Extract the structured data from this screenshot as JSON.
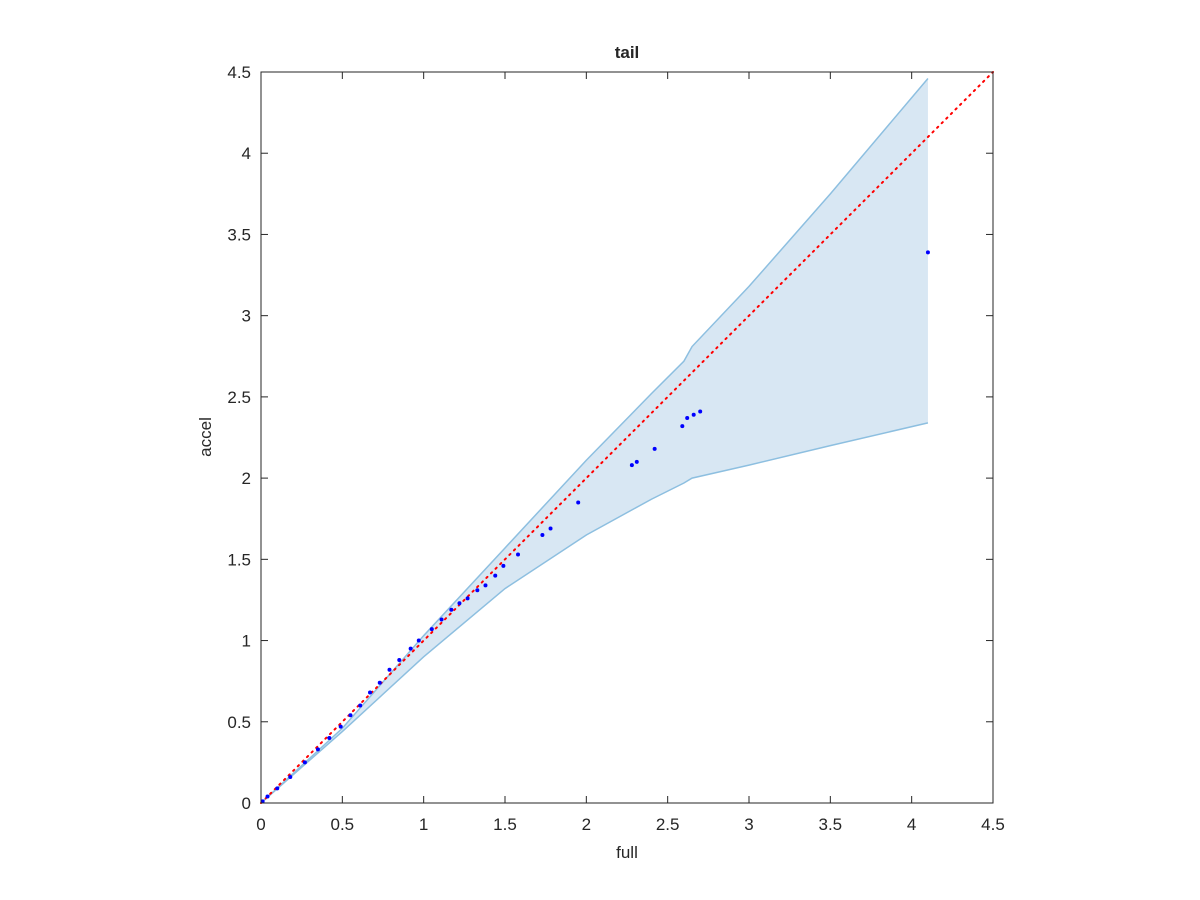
{
  "chart_data": {
    "type": "scatter",
    "title": "tail",
    "x_label": "full",
    "y_label": "accel",
    "xlim": [
      0,
      4.5
    ],
    "ylim": [
      0,
      4.5
    ],
    "xticks": [
      0,
      0.5,
      1,
      1.5,
      2,
      2.5,
      3,
      3.5,
      4,
      4.5
    ],
    "yticks": [
      0,
      0.5,
      1,
      1.5,
      2,
      2.5,
      3,
      3.5,
      4,
      4.5
    ],
    "band": {
      "color": "#d8e7f3",
      "edge_color": "#8dbfe0",
      "x": [
        0,
        0.5,
        1,
        1.5,
        2,
        2.4,
        2.6,
        2.65,
        3,
        3.5,
        4.1
      ],
      "upper": [
        0,
        0.46,
        1.03,
        1.57,
        2.11,
        2.52,
        2.72,
        2.81,
        3.18,
        3.75,
        4.46
      ],
      "lower": [
        0,
        0.44,
        0.9,
        1.32,
        1.65,
        1.87,
        1.97,
        2.0,
        2.08,
        2.2,
        2.34
      ]
    },
    "reference": {
      "color": "#ff0000",
      "x": [
        0,
        4.5
      ],
      "y": [
        0,
        4.5
      ]
    },
    "points": {
      "color": "#0000ff",
      "x": [
        4.1,
        2.7,
        2.66,
        2.62,
        2.59,
        2.42,
        2.31,
        2.28,
        1.95,
        1.78,
        1.73,
        1.58,
        1.49,
        1.44,
        1.38,
        1.33,
        1.27,
        1.22,
        1.17,
        1.11,
        1.05,
        0.97,
        0.92,
        0.85,
        0.79,
        0.73,
        0.67,
        0.61,
        0.55,
        0.49,
        0.42,
        0.35,
        0.27,
        0.18,
        0.1,
        0.04,
        0.01
      ],
      "y": [
        3.39,
        2.41,
        2.39,
        2.37,
        2.32,
        2.18,
        2.1,
        2.08,
        1.85,
        1.69,
        1.65,
        1.53,
        1.46,
        1.4,
        1.34,
        1.31,
        1.26,
        1.23,
        1.19,
        1.13,
        1.07,
        1.0,
        0.95,
        0.88,
        0.82,
        0.74,
        0.68,
        0.6,
        0.54,
        0.47,
        0.4,
        0.33,
        0.25,
        0.16,
        0.09,
        0.04,
        0.01
      ]
    }
  }
}
